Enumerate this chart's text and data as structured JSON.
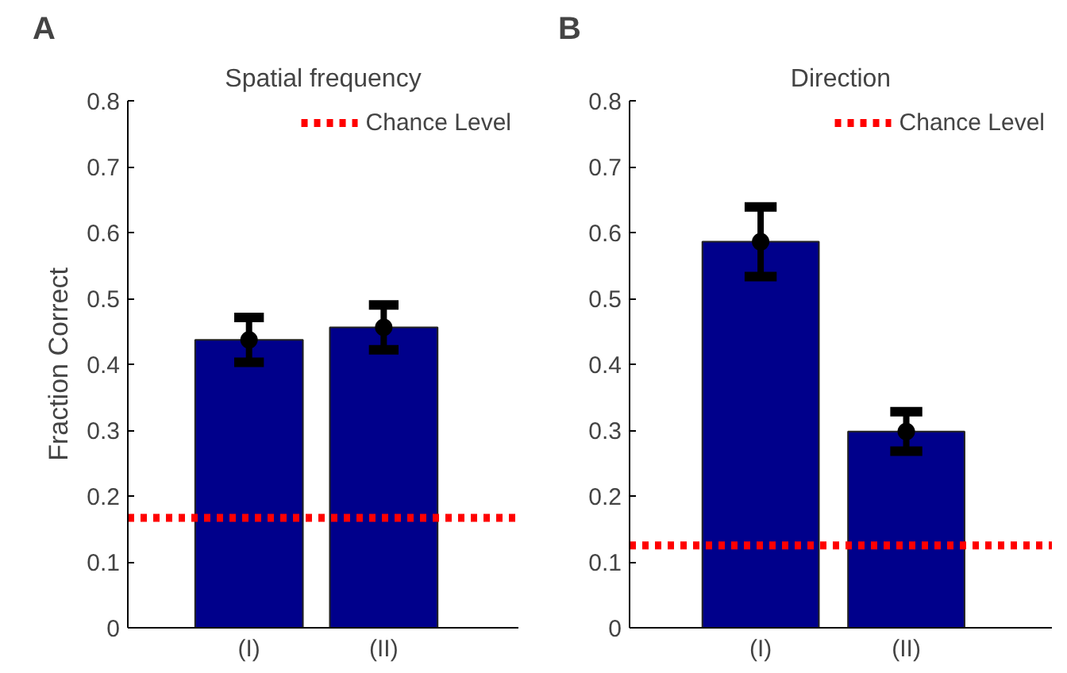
{
  "chart_data": [
    {
      "type": "bar",
      "title": "Spatial frequency",
      "ylabel": "Fraction Correct",
      "annotations": [
        "A"
      ],
      "categories": [
        "(I)",
        "(II)"
      ],
      "values": [
        0.437,
        0.456
      ],
      "errors": [
        0.034,
        0.034
      ],
      "color": "#00008b",
      "series": [
        {
          "type": "scatter",
          "x": [
            "(I)",
            "(II)"
          ],
          "values": [
            0.437,
            0.456
          ],
          "color": "#000000"
        }
      ],
      "marker": "circle",
      "ylim": [
        0,
        0.8
      ],
      "yticks": [
        0,
        0.1,
        0.2,
        0.3,
        0.4,
        0.5,
        0.6,
        0.7,
        0.8
      ],
      "ref_lines": [
        {
          "axis": "y",
          "value": 0.167,
          "label": "Chance Level",
          "color": "#ff0000",
          "line_style": "dashed"
        }
      ],
      "legend": "top right",
      "grid": false
    },
    {
      "type": "bar",
      "title": "Direction",
      "annotations": [
        "B"
      ],
      "categories": [
        "(I)",
        "(II)"
      ],
      "values": [
        0.586,
        0.298
      ],
      "errors": [
        0.053,
        0.03
      ],
      "color": "#00008b",
      "series": [
        {
          "type": "scatter",
          "x": [
            "(I)",
            "(II)"
          ],
          "values": [
            0.586,
            0.298
          ],
          "color": "#000000"
        }
      ],
      "marker": "circle",
      "ylim": [
        0,
        0.8
      ],
      "yticks": [
        0,
        0.1,
        0.2,
        0.3,
        0.4,
        0.5,
        0.6,
        0.7,
        0.8
      ],
      "ref_lines": [
        {
          "axis": "y",
          "value": 0.125,
          "label": "Chance Level",
          "color": "#ff0000",
          "line_style": "dashed"
        }
      ],
      "legend": "top right",
      "grid": false
    }
  ]
}
